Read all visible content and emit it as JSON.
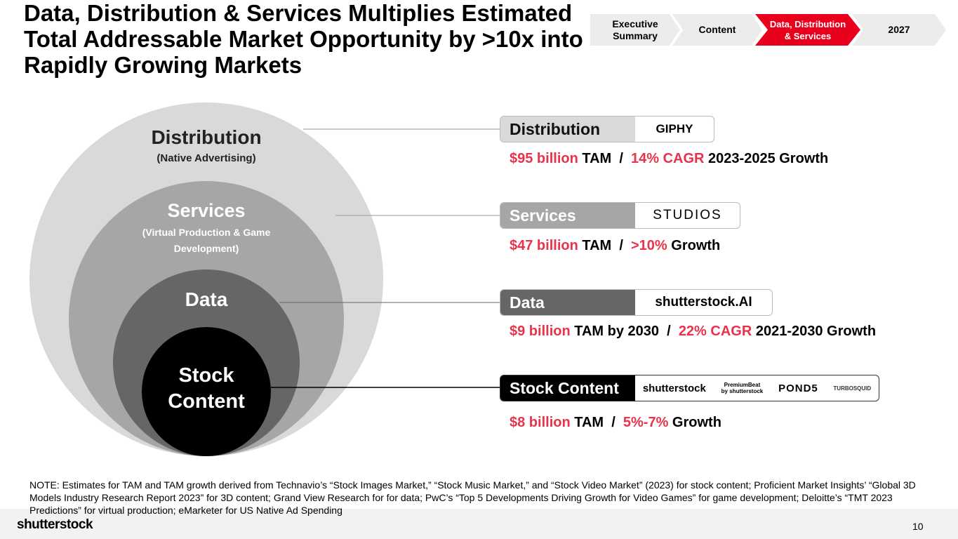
{
  "title": "Data, Distribution & Services Multiplies Estimated Total Addressable Market Opportunity by >10x into Rapidly Growing Markets",
  "nav": [
    {
      "label": "Executive Summary",
      "active": false
    },
    {
      "label": "Content",
      "active": false
    },
    {
      "label": "Data, Distribution & Services",
      "active": true
    },
    {
      "label": "2027",
      "active": false
    }
  ],
  "circles": {
    "distribution": {
      "title": "Distribution",
      "sub": "(Native Advertising)"
    },
    "services": {
      "title": "Services",
      "sub": "(Virtual Production & Game Development)"
    },
    "data": {
      "title": "Data"
    },
    "stock": {
      "title": "Stock Content"
    }
  },
  "rows": [
    {
      "label": "Distribution",
      "logos": [
        "GIPHY"
      ],
      "stat": [
        {
          "t": "$95 billion",
          "red": true
        },
        {
          "t": " TAM  /  ",
          "red": false
        },
        {
          "t": "14% CAGR",
          "red": true
        },
        {
          "t": " 2023-2025 Growth",
          "red": false
        }
      ]
    },
    {
      "label": "Services",
      "logos": [
        "STUDIOS"
      ],
      "stat": [
        {
          "t": "$47 billion",
          "red": true
        },
        {
          "t": " TAM  /  ",
          "red": false
        },
        {
          "t": ">10%",
          "red": true
        },
        {
          "t": " Growth",
          "red": false
        }
      ]
    },
    {
      "label": "Data",
      "logos": [
        "shutterstock.AI"
      ],
      "stat": [
        {
          "t": "$9 billion",
          "red": true
        },
        {
          "t": " TAM by 2030  /  ",
          "red": false
        },
        {
          "t": "22% CAGR",
          "red": true
        },
        {
          "t": " 2021-2030 Growth",
          "red": false
        }
      ]
    },
    {
      "label": "Stock Content",
      "logos": [
        "shutterstock",
        "PremiumBeat by shutterstock",
        "POND5",
        "TURBOSQUID"
      ],
      "stat": [
        {
          "t": "$8 billion",
          "red": true
        },
        {
          "t": " TAM  /  ",
          "red": false
        },
        {
          "t": "5%-7%",
          "red": true
        },
        {
          "t": " Growth",
          "red": false
        }
      ]
    }
  ],
  "note": "NOTE: Estimates for TAM and TAM growth derived from Technavio’s “Stock Images Market,” “Stock Music Market,” and “Stock Video Market” (2023) for stock content; Proficient Market Insights’ “Global 3D Models Industry Research Report 2023” for 3D content; Grand View Research for for data; PwC’s “Top 5 Developments Driving Growth for Video Games” for game development; Deloitte’s “TMT 2023 Predictions” for virtual production; eMarketer for US Native Ad Spending",
  "footer": {
    "logo": "shutterstock",
    "page": "10"
  },
  "colors": {
    "accent": "#e8334a",
    "nav_inactive": "#ececec"
  }
}
